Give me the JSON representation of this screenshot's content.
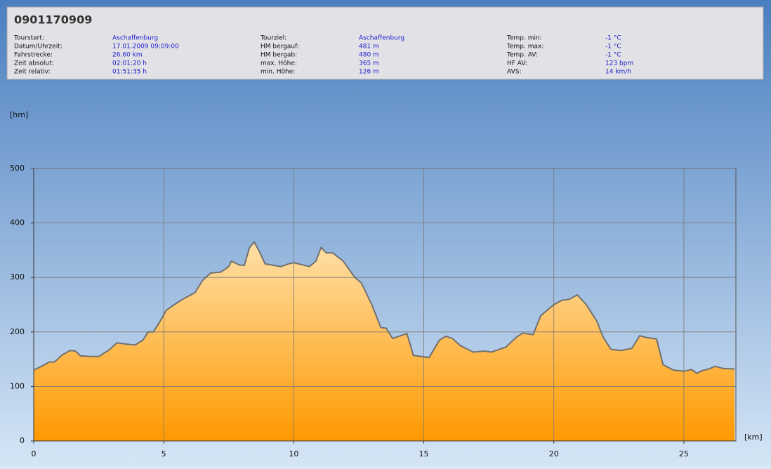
{
  "info": {
    "title": "0901170909",
    "columns": [
      [
        {
          "label": "Tourstart:",
          "value": "Aschaffenburg"
        },
        {
          "label": "Datum/Uhrzeit:",
          "value": "17.01.2009 09:09:00"
        },
        {
          "label": "Fahrstrecke:",
          "value": "26.60 km"
        },
        {
          "label": "Zeit absolut:",
          "value": "02:01:20 h"
        },
        {
          "label": "Zeit relativ:",
          "value": "01:51:35 h"
        }
      ],
      [
        {
          "label": "Tourziel:",
          "value": "Aschaffenburg"
        },
        {
          "label": "HM bergauf:",
          "value": "481 m"
        },
        {
          "label": "HM bergab:",
          "value": "480 m"
        },
        {
          "label": "max. Höhe:",
          "value": "365 m"
        },
        {
          "label": "min. Höhe:",
          "value": "126 m"
        }
      ],
      [
        {
          "label": "Temp. min:",
          "value": "-1 °C"
        },
        {
          "label": "Temp. max:",
          "value": "-1 °C"
        },
        {
          "label": "Temp. AV:",
          "value": "-1 °C"
        },
        {
          "label": "HF AV:",
          "value": "123 bpm"
        },
        {
          "label": "AVS:",
          "value": "14 km/h"
        }
      ]
    ]
  },
  "chart_data": {
    "type": "area",
    "y_label": "[hm]",
    "x_label": "[km]",
    "x": [
      0,
      0.3,
      0.6,
      0.8,
      1.1,
      1.4,
      1.6,
      1.8,
      2.2,
      2.5,
      2.9,
      3.2,
      3.5,
      3.9,
      4.2,
      4.4,
      4.6,
      4.8,
      5.1,
      5.4,
      5.8,
      6.2,
      6.5,
      6.8,
      7.2,
      7.5,
      7.6,
      7.9,
      8.1,
      8.3,
      8.48,
      8.65,
      8.9,
      9.5,
      9.8,
      10.0,
      10.6,
      10.85,
      11.05,
      11.25,
      11.5,
      11.9,
      12.35,
      12.6,
      13.0,
      13.35,
      13.55,
      13.8,
      14.35,
      14.6,
      15.2,
      15.6,
      15.85,
      16.1,
      16.4,
      16.9,
      17.35,
      17.6,
      18.15,
      18.55,
      18.8,
      19.2,
      19.5,
      20.0,
      20.3,
      20.6,
      20.9,
      21.25,
      21.65,
      21.9,
      22.2,
      22.6,
      23.0,
      23.3,
      23.55,
      23.95,
      24.2,
      24.6,
      25.0,
      25.3,
      25.5,
      25.7,
      25.95,
      26.2,
      26.5,
      26.95
    ],
    "values": [
      130,
      137,
      145,
      145,
      158,
      166,
      165,
      156,
      155,
      155,
      167,
      180,
      178,
      176,
      185,
      200,
      200,
      215,
      240,
      250,
      262,
      272,
      295,
      308,
      310,
      320,
      330,
      323,
      322,
      355,
      365,
      350,
      325,
      320,
      325,
      327,
      320,
      330,
      355,
      345,
      345,
      330,
      300,
      290,
      250,
      208,
      207,
      188,
      197,
      157,
      153,
      185,
      192,
      188,
      175,
      163,
      165,
      163,
      172,
      190,
      198,
      195,
      230,
      250,
      258,
      260,
      268,
      250,
      220,
      190,
      168,
      166,
      170,
      193,
      190,
      187,
      140,
      130,
      128,
      131,
      124,
      129,
      132,
      137,
      133,
      132
    ],
    "line_color": "#707070",
    "fill_top": "#ffe0a8",
    "fill_bottom": "#ff9900",
    "xlim": [
      0,
      27
    ],
    "ylim": [
      0,
      500
    ],
    "xticks": [
      0,
      5,
      10,
      15,
      20,
      25
    ],
    "yticks": [
      0,
      100,
      200,
      300,
      400,
      500
    ],
    "grid": true
  }
}
